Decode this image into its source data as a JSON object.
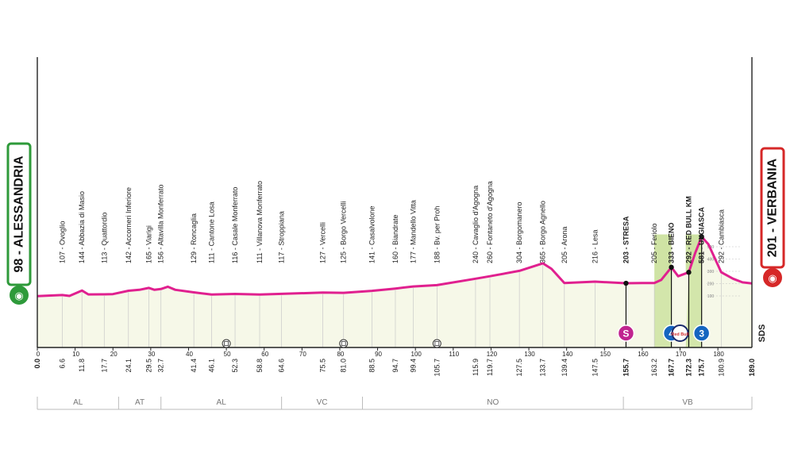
{
  "chart_data": {
    "type": "area",
    "start": {
      "elevation": "98",
      "name": "ALESSANDRIA",
      "label": "98 - ALESSANDRIA"
    },
    "finish": {
      "elevation": "201",
      "name": "VERBANIA",
      "label": "201 - VERBANIA"
    },
    "total_km": 189.0,
    "xlim": [
      0,
      189
    ],
    "x_ticks": [
      0,
      10,
      20,
      30,
      40,
      50,
      60,
      70,
      80,
      90,
      100,
      110,
      120,
      130,
      140,
      150,
      160,
      170,
      180
    ],
    "profile": [
      [
        0,
        98
      ],
      [
        6.6,
        107
      ],
      [
        8.5,
        100
      ],
      [
        11.8,
        144
      ],
      [
        13.5,
        112
      ],
      [
        17.7,
        113
      ],
      [
        20,
        115
      ],
      [
        24.1,
        142
      ],
      [
        27,
        150
      ],
      [
        29.5,
        165
      ],
      [
        31,
        150
      ],
      [
        32.7,
        156
      ],
      [
        34.5,
        175
      ],
      [
        36.5,
        150
      ],
      [
        41.4,
        129
      ],
      [
        46.1,
        111
      ],
      [
        52.3,
        116
      ],
      [
        58.8,
        111
      ],
      [
        64.6,
        117
      ],
      [
        75.5,
        127
      ],
      [
        81.0,
        125
      ],
      [
        88.5,
        141
      ],
      [
        94.7,
        160
      ],
      [
        99.4,
        177
      ],
      [
        105.7,
        188
      ],
      [
        115.9,
        240
      ],
      [
        119.7,
        260
      ],
      [
        127.5,
        304
      ],
      [
        133.7,
        365
      ],
      [
        136,
        320
      ],
      [
        139.4,
        205
      ],
      [
        147.5,
        216
      ],
      [
        155.7,
        203
      ],
      [
        160,
        205
      ],
      [
        163.2,
        205
      ],
      [
        165,
        230
      ],
      [
        167.7,
        333
      ],
      [
        169.5,
        260
      ],
      [
        172.3,
        292
      ],
      [
        174,
        450
      ],
      [
        175.7,
        581
      ],
      [
        177.5,
        520
      ],
      [
        180.9,
        292
      ],
      [
        184,
        240
      ],
      [
        186.5,
        210
      ],
      [
        189.0,
        201
      ]
    ],
    "points": [
      {
        "km": "6.6",
        "label": "107 - Ovoglio",
        "elev": 107
      },
      {
        "km": "11.8",
        "label": "144 - Abbazia di Masio",
        "elev": 144
      },
      {
        "km": "17.7",
        "label": "113 - Quattordio",
        "elev": 113
      },
      {
        "km": "24.1",
        "label": "142 - Accorneri Inferiore",
        "elev": 142
      },
      {
        "km": "29.5",
        "label": "165 - Viarigi",
        "elev": 165
      },
      {
        "km": "32.7",
        "label": "156 - Altavilla Monferrato",
        "elev": 156
      },
      {
        "km": "41.4",
        "label": "129 - Roncaglia",
        "elev": 129
      },
      {
        "km": "46.1",
        "label": "111 - Cantone Losa",
        "elev": 111
      },
      {
        "km": "52.3",
        "label": "116 - Casale Monferrato",
        "elev": 116
      },
      {
        "km": "58.8",
        "label": "111 - Villanova Monferrato",
        "elev": 111
      },
      {
        "km": "64.6",
        "label": "117 - Stroppiana",
        "elev": 117
      },
      {
        "km": "75.5",
        "label": "127 - Vercelli",
        "elev": 127
      },
      {
        "km": "81.0",
        "label": "125 - Borgo Vercelli",
        "elev": 125
      },
      {
        "km": "88.5",
        "label": "141 - Casalvolone",
        "elev": 141
      },
      {
        "km": "94.7",
        "label": "160 - Biandrate",
        "elev": 160
      },
      {
        "km": "99.4",
        "label": "177 - Mandello Vitta",
        "elev": 177
      },
      {
        "km": "105.7",
        "label": "188 - Bv. per Proh",
        "elev": 188
      },
      {
        "km": "115.9",
        "label": "240 - Cavaglio d'Agogna",
        "elev": 240
      },
      {
        "km": "119.7",
        "label": "260 - Fontaneto d'Agogna",
        "elev": 260
      },
      {
        "km": "127.5",
        "label": "304 - Borgomanero",
        "elev": 304
      },
      {
        "km": "133.7",
        "label": "365 - Borgo Agnello",
        "elev": 365
      },
      {
        "km": "139.4",
        "label": "205 - Arona",
        "elev": 205
      },
      {
        "km": "147.5",
        "label": "216 - Lesa",
        "elev": 216
      },
      {
        "km": "155.7",
        "label": "203 - STRESA",
        "elev": 203,
        "bold": true
      },
      {
        "km": "163.2",
        "label": "205 - Feriolo",
        "elev": 205
      },
      {
        "km": "167.7",
        "label": "333 - BIENO",
        "elev": 333,
        "bold": true
      },
      {
        "km": "172.3",
        "label": "292 - RED BULL KM",
        "elev": 292,
        "bold": true
      },
      {
        "km": "175.7",
        "label": "581 - UNGIASCA",
        "elev": 581,
        "bold": true
      },
      {
        "km": "180.9",
        "label": "292 - Cambiasca",
        "elev": 292
      }
    ],
    "scale_labels": [
      "500",
      "400",
      "300",
      "200",
      "100"
    ],
    "scale_values": [
      500,
      400,
      300,
      200,
      100
    ],
    "regions": [
      {
        "name": "AL",
        "from": 0,
        "to": 21.5
      },
      {
        "name": "AT",
        "from": 21.5,
        "to": 32.7
      },
      {
        "name": "AL",
        "from": 32.7,
        "to": 64.6
      },
      {
        "name": "VC",
        "from": 64.6,
        "to": 86
      },
      {
        "name": "NO",
        "from": 86,
        "to": 155
      },
      {
        "name": "VB",
        "from": 155,
        "to": 189
      }
    ],
    "markers": [
      {
        "type": "sprint",
        "km": 155.7,
        "text": "S",
        "color": "#c0248f"
      },
      {
        "type": "kom",
        "km": 167.7,
        "text": "4",
        "color": "#1565c0"
      },
      {
        "type": "redbull",
        "km": 170.0,
        "text": "Red Bull",
        "color": "#d32f2f"
      },
      {
        "type": "kom",
        "km": 175.7,
        "text": "3",
        "color": "#1565c0"
      }
    ],
    "climb_bands": [
      {
        "from": 163.2,
        "to": 167.7
      },
      {
        "from": 171.5,
        "to": 175.7
      }
    ],
    "intermediate_icons": [
      50,
      81.0,
      105.7
    ],
    "sds_label": "SDS",
    "colors": {
      "profile_line": "#e0208f",
      "profile_fill": "#f6f8e8",
      "climb_fill": "#cfe3a4",
      "start_border": "#2e9a3a",
      "finish_border": "#d62828",
      "axis": "#222222"
    }
  }
}
